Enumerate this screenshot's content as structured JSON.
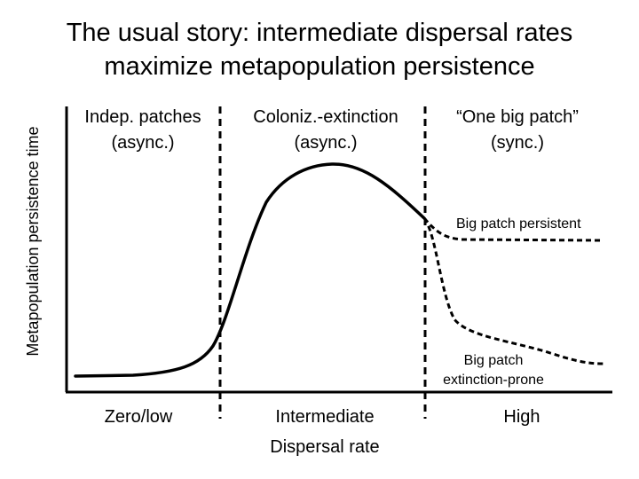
{
  "title": {
    "line1": "The usual story: intermediate dispersal rates",
    "line2": "maximize metapopulation persistence"
  },
  "y_axis_label": "Metapopulation persistence time",
  "regions": [
    {
      "line1": "Indep. patches",
      "line2": "(async.)"
    },
    {
      "line1": "Coloniz.-extinction",
      "line2": "(async.)"
    },
    {
      "line1": "“One big patch”",
      "line2": "(sync.)"
    }
  ],
  "annotations": {
    "persistent": "Big patch persistent",
    "prone_line1": "Big patch",
    "prone_line2": "extinction-prone"
  },
  "x_ticks": {
    "low": "Zero/low",
    "mid": "Intermediate",
    "high": "High"
  },
  "x_axis_label": "Dispersal rate",
  "colors": {
    "ink": "#000000",
    "background": "#ffffff"
  }
}
